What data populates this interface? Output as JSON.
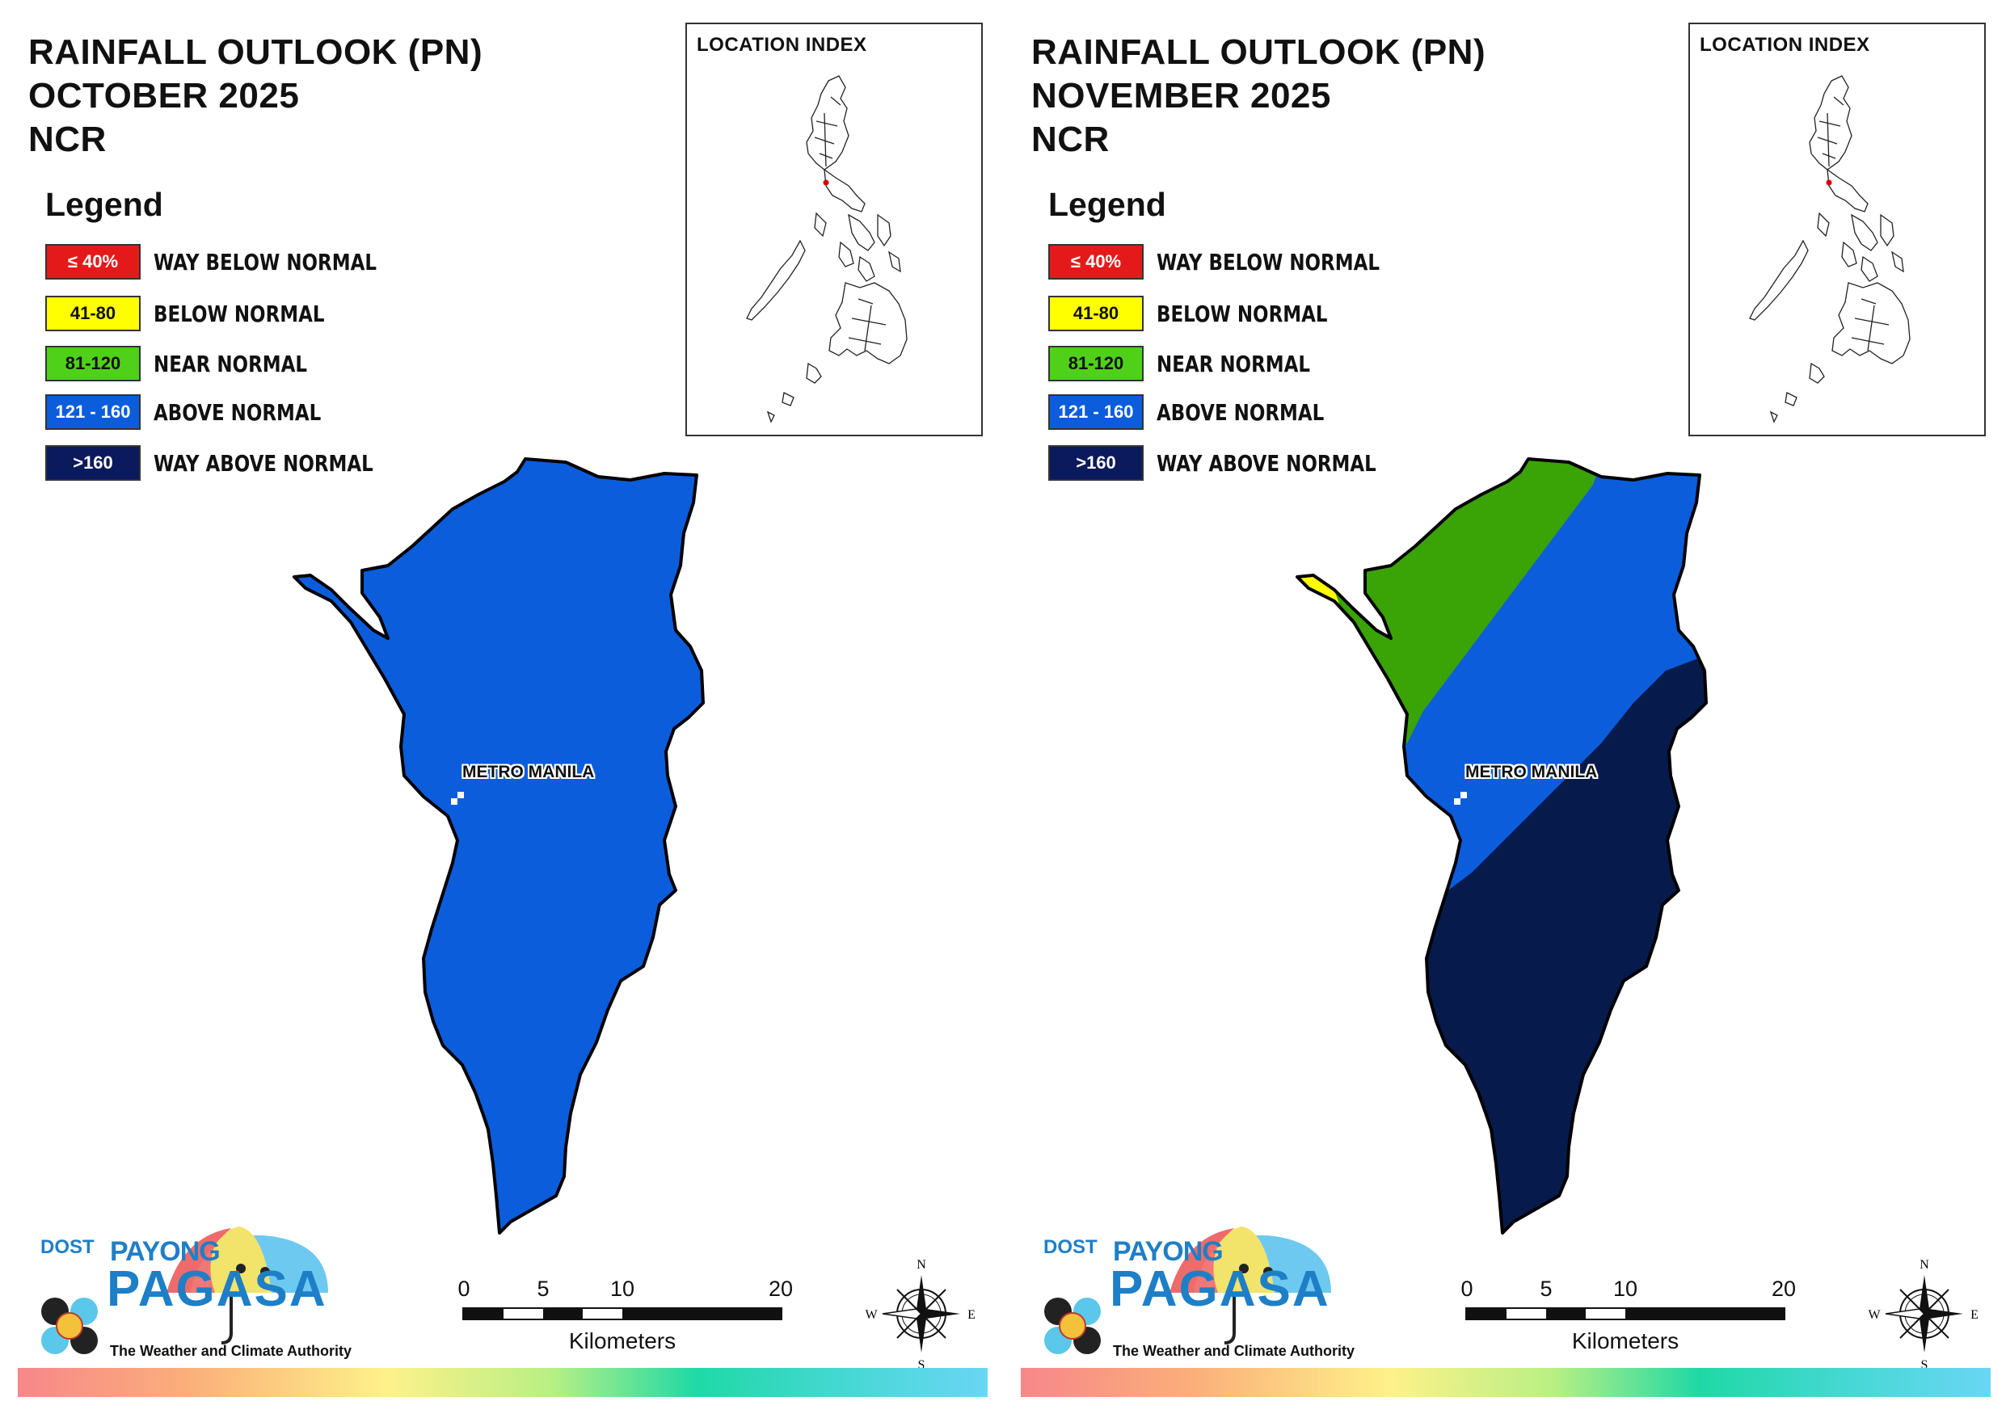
{
  "panels": [
    {
      "title_line1": "RAINFALL OUTLOOK (PN)",
      "title_line2": "OCTOBER 2025",
      "title_line3": "NCR",
      "region_label": "METRO MANILA",
      "map_zones": [
        "above_normal"
      ]
    },
    {
      "title_line1": "RAINFALL OUTLOOK (PN)",
      "title_line2": "NOVEMBER 2025",
      "title_line3": "NCR",
      "region_label": "METRO MANILA",
      "map_zones": [
        "below_normal",
        "near_normal",
        "above_normal",
        "way_above_normal"
      ]
    }
  ],
  "legend": {
    "heading": "Legend",
    "items": [
      {
        "key": "way_below_normal",
        "range": "≤ 40%",
        "label": "WAY BELOW NORMAL",
        "color": "#e41a1a",
        "text_color": "#ffffff"
      },
      {
        "key": "below_normal",
        "range": "41-80",
        "label": "BELOW NORMAL",
        "color": "#ffff00",
        "text_color": "#111111"
      },
      {
        "key": "near_normal",
        "range": "81-120",
        "label": "NEAR NORMAL",
        "color": "#4fd11a",
        "text_color": "#111111"
      },
      {
        "key": "above_normal",
        "range": "121 - 160",
        "label": "ABOVE NORMAL",
        "color": "#0b5ddc",
        "text_color": "#ffffff"
      },
      {
        "key": "way_above_normal",
        "range": ">160",
        "label": "WAY ABOVE NORMAL",
        "color": "#0b1a5c",
        "text_color": "#ffffff"
      }
    ]
  },
  "map_colors": {
    "above_normal": "#0b5ddc",
    "near_normal": "#3aa306",
    "below_normal": "#ffff00",
    "way_above_normal": "#061a4c"
  },
  "inset": {
    "title": "LOCATION INDEX"
  },
  "logo": {
    "dost": "DOST",
    "payong": "PAYONG",
    "pagasa": "PAGASA",
    "tagline": "The Weather and Climate Authority"
  },
  "scale_bar": {
    "ticks": [
      "0",
      "5",
      "10",
      "20"
    ],
    "units": "Kilometers"
  },
  "compass": {
    "n": "N",
    "s": "S",
    "e": "E",
    "w": "W"
  }
}
